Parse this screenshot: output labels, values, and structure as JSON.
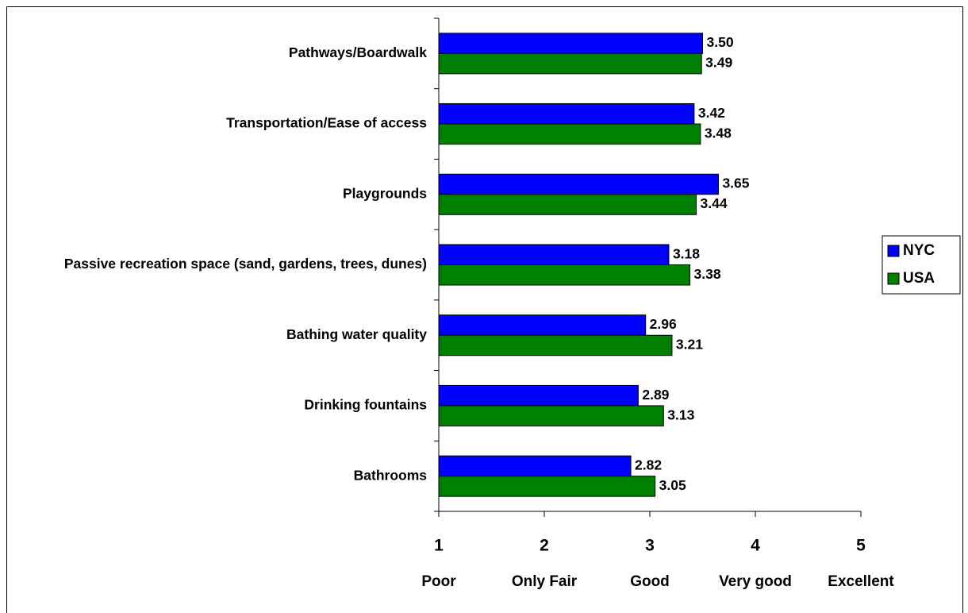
{
  "chart_data": {
    "type": "hbar",
    "categories": [
      "Pathways/Boardwalk",
      "Transportation/Ease of access",
      "Playgrounds",
      "Passive recreation space (sand, gardens, trees, dunes)",
      "Bathing water quality",
      "Drinking fountains",
      "Bathrooms"
    ],
    "series": [
      {
        "name": "NYC",
        "color": "#0000FF",
        "values": [
          3.5,
          3.42,
          3.65,
          3.18,
          2.96,
          2.89,
          2.82
        ],
        "value_labels": [
          "3.50",
          "3.42",
          "3.65",
          "3.18",
          "2.96",
          "2.89",
          "2.82"
        ]
      },
      {
        "name": "USA",
        "color": "#008000",
        "values": [
          3.49,
          3.48,
          3.44,
          3.38,
          3.21,
          3.13,
          3.05
        ],
        "value_labels": [
          "3.49",
          "3.48",
          "3.44",
          "3.38",
          "3.21",
          "3.13",
          "3.05"
        ]
      }
    ],
    "xlim": [
      1,
      5
    ],
    "xticks": [
      1,
      2,
      3,
      4,
      5
    ],
    "xtick_descriptions": [
      "Poor",
      "Only Fair",
      "Good",
      "Very good",
      "Excellent"
    ],
    "legend": "right"
  }
}
